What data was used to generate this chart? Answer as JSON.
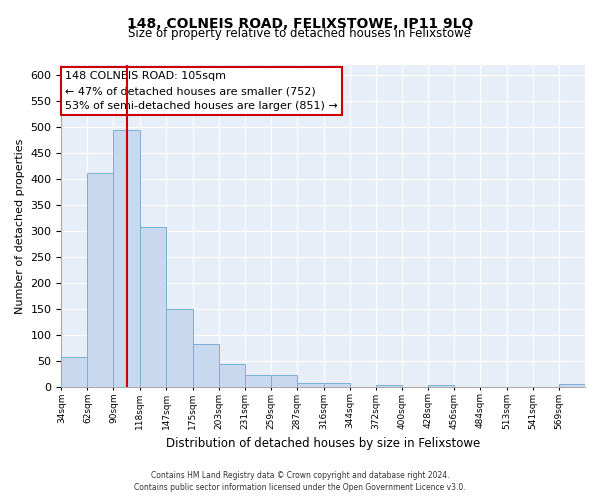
{
  "title": "148, COLNEIS ROAD, FELIXSTOWE, IP11 9LQ",
  "subtitle": "Size of property relative to detached houses in Felixstowe",
  "xlabel": "Distribution of detached houses by size in Felixstowe",
  "ylabel": "Number of detached properties",
  "bar_color": "#c8d8ee",
  "bar_edge_color": "#7aafd4",
  "bg_color": "#e8eef8",
  "vline_x": 105,
  "vline_color": "#cc0000",
  "annotation_title": "148 COLNEIS ROAD: 105sqm",
  "annotation_line1": "← 47% of detached houses are smaller (752)",
  "annotation_line2": "53% of semi-detached houses are larger (851) →",
  "bins": [
    34,
    62,
    90,
    118,
    147,
    175,
    203,
    231,
    259,
    287,
    316,
    344,
    372,
    400,
    428,
    456,
    484,
    513,
    541,
    569,
    597
  ],
  "counts": [
    57,
    412,
    495,
    307,
    149,
    82,
    43,
    22,
    22,
    8,
    7,
    0,
    3,
    0,
    3,
    0,
    0,
    0,
    0,
    5
  ],
  "ylim": [
    0,
    620
  ],
  "yticks": [
    0,
    50,
    100,
    150,
    200,
    250,
    300,
    350,
    400,
    450,
    500,
    550,
    600
  ],
  "footer_line1": "Contains HM Land Registry data © Crown copyright and database right 2024.",
  "footer_line2": "Contains public sector information licensed under the Open Government Licence v3.0."
}
